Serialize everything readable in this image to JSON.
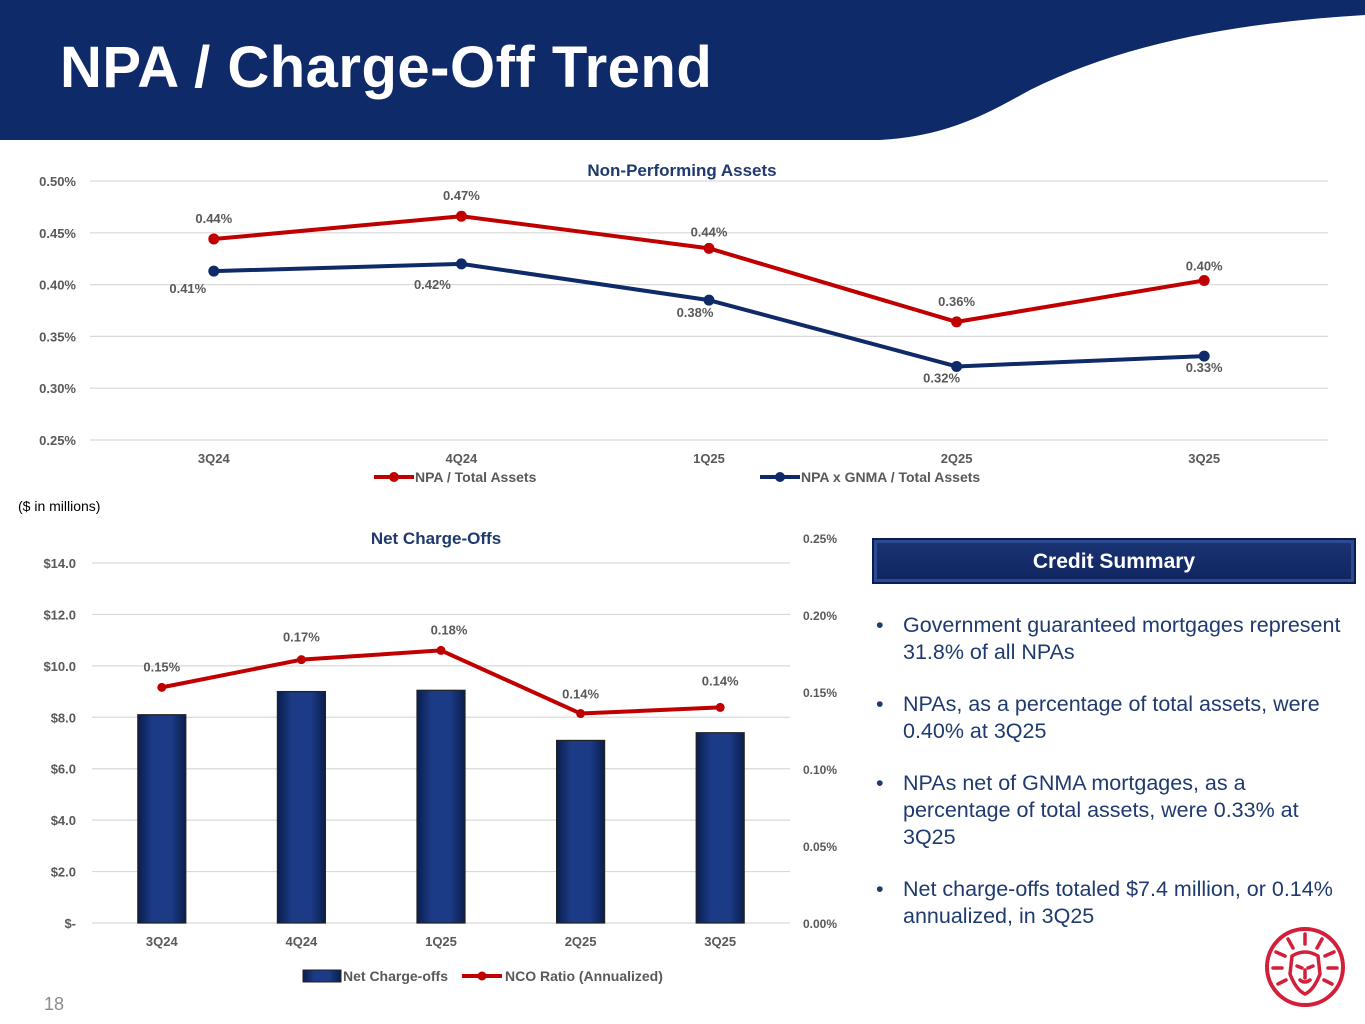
{
  "slide": {
    "title": "NPA / Charge-Off Trend",
    "units_note": "($ in millions)",
    "page_number": "18",
    "colors": {
      "navy": "#0f2a69",
      "red": "#c00000",
      "text_navy": "#1f3a6e",
      "axis_gray": "#595959"
    }
  },
  "chart_data": [
    {
      "id": "npa",
      "type": "line",
      "title": "Non-Performing Assets",
      "categories": [
        "3Q24",
        "4Q24",
        "1Q25",
        "2Q25",
        "3Q25"
      ],
      "ylim": [
        0.25,
        0.5
      ],
      "yticks": [
        "0.50%",
        "0.45%",
        "0.40%",
        "0.35%",
        "0.30%",
        "0.25%"
      ],
      "ytick_values": [
        0.5,
        0.45,
        0.4,
        0.35,
        0.3,
        0.25
      ],
      "grid": true,
      "legend_position": "bottom",
      "series": [
        {
          "name": "NPA / Total Assets",
          "color": "#c00000",
          "values": [
            0.444,
            0.466,
            0.435,
            0.364,
            0.404
          ],
          "labels": [
            "0.44%",
            "0.47%",
            "0.44%",
            "0.36%",
            "0.40%"
          ]
        },
        {
          "name": "NPA x GNMA / Total Assets",
          "color": "#0f2a69",
          "values": [
            0.413,
            0.42,
            0.385,
            0.321,
            0.331
          ],
          "labels": [
            "0.41%",
            "0.42%",
            "0.38%",
            "0.32%",
            "0.33%"
          ]
        }
      ]
    },
    {
      "id": "nco",
      "type": "bar",
      "title": "Net Charge-Offs",
      "categories": [
        "3Q24",
        "4Q24",
        "1Q25",
        "2Q25",
        "3Q25"
      ],
      "ylim": [
        0,
        14
      ],
      "yticks": [
        "$14.0",
        "$12.0",
        "$10.0",
        "$8.0",
        "$6.0",
        "$4.0",
        "$2.0",
        "$-"
      ],
      "ytick_values": [
        14,
        12,
        10,
        8,
        6,
        4,
        2,
        0
      ],
      "y2lim": [
        0,
        0.25
      ],
      "y2ticks": [
        "0.25%",
        "0.20%",
        "0.15%",
        "0.10%",
        "0.05%",
        "0.00%"
      ],
      "y2tick_values": [
        0.25,
        0.2,
        0.15,
        0.1,
        0.05,
        0.0
      ],
      "grid": true,
      "legend_position": "bottom",
      "series": [
        {
          "name": "Net Charge-offs",
          "type": "bar",
          "axis": "left",
          "color": "#0f2a69",
          "values": [
            8.1,
            9.0,
            9.05,
            7.1,
            7.4
          ]
        },
        {
          "name": "NCO Ratio (Annualized)",
          "type": "line",
          "axis": "right",
          "color": "#c00000",
          "values": [
            0.153,
            0.171,
            0.177,
            0.136,
            0.14
          ],
          "labels": [
            "0.15%",
            "0.17%",
            "0.18%",
            "0.14%",
            "0.14%"
          ]
        }
      ]
    }
  ],
  "summary": {
    "header": "Credit Summary",
    "bullet_glyph": "•",
    "bullets": [
      "Government guaranteed mortgages represent 31.8% of all NPAs",
      "NPAs, as a percentage of total assets, were 0.40% at 3Q25",
      "NPAs net of GNMA mortgages, as a percentage of total assets, were 0.33% at 3Q25",
      "Net charge-offs totaled $7.4 million, or 0.14% annualized, in 3Q25"
    ]
  },
  "logo": {
    "icon": "lion-head-icon"
  }
}
